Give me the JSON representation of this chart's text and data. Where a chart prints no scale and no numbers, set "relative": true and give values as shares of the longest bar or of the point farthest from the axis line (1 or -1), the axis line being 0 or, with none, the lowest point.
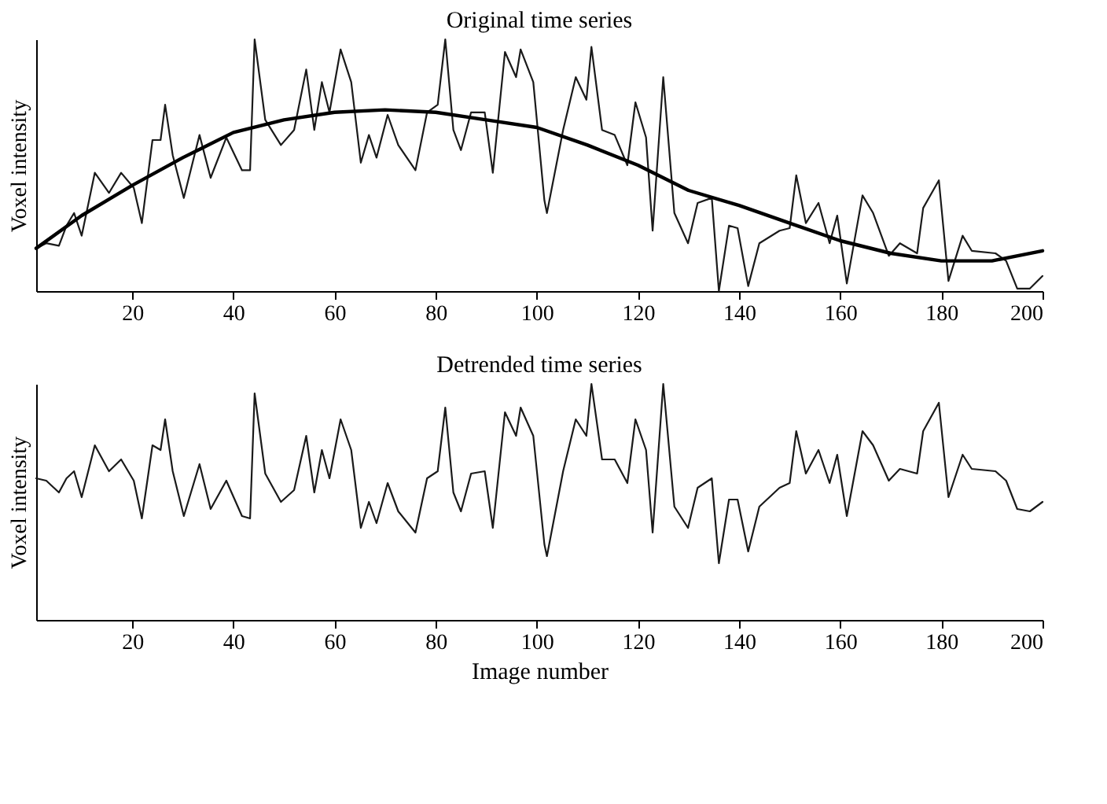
{
  "chart_data": [
    {
      "type": "line",
      "title": "Original time series",
      "ylabel": "Voxel intensity",
      "relative": true,
      "tick_labels": "x",
      "grid": false,
      "xlim": [
        1,
        200
      ],
      "xticks": [
        20,
        40,
        60,
        80,
        100,
        120,
        140,
        160,
        180,
        200
      ],
      "x": [
        1,
        3,
        5.5,
        7,
        8.5,
        10,
        12.6,
        15.4,
        17.8,
        20.3,
        21.9,
        24,
        25.6,
        26.5,
        28,
        30.2,
        33.3,
        35.5,
        38.6,
        41.7,
        43.3,
        44.2,
        46.3,
        49.4,
        52,
        54.4,
        56,
        57.5,
        59,
        61.2,
        63.3,
        65.2,
        66.8,
        68.3,
        70.5,
        72.6,
        76,
        78.3,
        80.4,
        81.9,
        83.5,
        85,
        87,
        89.7,
        91.3,
        93.7,
        95.9,
        96.8,
        99.3,
        101.5,
        102,
        105.2,
        107.7,
        109.8,
        110.8,
        112.9,
        115.4,
        117.9,
        119.5,
        121.6,
        122.9,
        125,
        127.2,
        129.9,
        131.8,
        134.6,
        136,
        138,
        139.7,
        141.8,
        144,
        148,
        150,
        151.3,
        153.2,
        155.7,
        157.9,
        159.4,
        161.3,
        164.4,
        166.5,
        169.6,
        171.8,
        175.2,
        176.4,
        179.5,
        181.4,
        184.2,
        186,
        190.7,
        192.8,
        195,
        197.5,
        200
      ],
      "series": [
        {
          "color": "#1a1a1a",
          "values": [
            0.17,
            0.19,
            0.18,
            0.26,
            0.31,
            0.22,
            0.47,
            0.39,
            0.47,
            0.41,
            0.27,
            0.6,
            0.6,
            0.74,
            0.54,
            0.37,
            0.62,
            0.45,
            0.61,
            0.48,
            0.48,
            1.0,
            0.68,
            0.58,
            0.64,
            0.88,
            0.64,
            0.83,
            0.71,
            0.96,
            0.83,
            0.51,
            0.62,
            0.53,
            0.7,
            0.58,
            0.48,
            0.71,
            0.74,
            1.0,
            0.64,
            0.56,
            0.71,
            0.71,
            0.47,
            0.95,
            0.85,
            0.96,
            0.83,
            0.36,
            0.31,
            0.64,
            0.85,
            0.76,
            0.97,
            0.64,
            0.62,
            0.5,
            0.75,
            0.61,
            0.24,
            0.85,
            0.31,
            0.19,
            0.35,
            0.37,
            0.0,
            0.26,
            0.25,
            0.02,
            0.19,
            0.24,
            0.25,
            0.46,
            0.27,
            0.35,
            0.19,
            0.3,
            0.03,
            0.38,
            0.31,
            0.14,
            0.19,
            0.15,
            0.33,
            0.44,
            0.04,
            0.22,
            0.16,
            0.15,
            0.12,
            0.01,
            0.01,
            0.06
          ]
        },
        {
          "type": "line",
          "color": "#000000",
          "x": [
            1,
            10,
            20,
            30,
            40,
            50,
            60,
            70,
            80,
            90,
            100,
            110,
            120,
            130,
            140,
            150,
            160,
            170,
            180,
            190,
            200
          ],
          "values": [
            0.17,
            0.3,
            0.42,
            0.53,
            0.63,
            0.68,
            0.71,
            0.72,
            0.71,
            0.68,
            0.65,
            0.58,
            0.5,
            0.4,
            0.34,
            0.27,
            0.2,
            0.15,
            0.12,
            0.12,
            0.16
          ]
        }
      ]
    },
    {
      "type": "line",
      "title": "Detrended time series",
      "xlabel": "Image number",
      "ylabel": "Voxel intensity",
      "relative": true,
      "tick_labels": "x",
      "grid": false,
      "xlim": [
        1,
        200
      ],
      "xticks": [
        20,
        40,
        60,
        80,
        100,
        120,
        140,
        160,
        180,
        200
      ],
      "x": [
        1,
        3,
        5.5,
        7,
        8.5,
        10,
        12.6,
        15.4,
        17.8,
        20.3,
        21.9,
        24,
        25.6,
        26.5,
        28,
        30.2,
        33.3,
        35.5,
        38.6,
        41.7,
        43.3,
        44.2,
        46.3,
        49.4,
        52,
        54.4,
        56,
        57.5,
        59,
        61.2,
        63.3,
        65.2,
        66.8,
        68.3,
        70.5,
        72.6,
        76,
        78.3,
        80.4,
        81.9,
        83.5,
        85,
        87,
        89.7,
        91.3,
        93.7,
        95.9,
        96.8,
        99.3,
        101.5,
        102,
        105.2,
        107.7,
        109.8,
        110.8,
        112.9,
        115.4,
        117.9,
        119.5,
        121.6,
        122.9,
        125,
        127.2,
        129.9,
        131.8,
        134.6,
        136,
        138,
        139.7,
        141.8,
        144,
        148,
        150,
        151.3,
        153.2,
        155.7,
        157.9,
        159.4,
        161.3,
        164.4,
        166.5,
        169.6,
        171.8,
        175.2,
        176.4,
        179.5,
        181.4,
        184.2,
        186,
        190.7,
        192.8,
        195,
        197.5,
        200
      ],
      "series": [
        {
          "color": "#1a1a1a",
          "values": [
            0.6,
            0.59,
            0.54,
            0.6,
            0.63,
            0.52,
            0.74,
            0.63,
            0.68,
            0.59,
            0.43,
            0.74,
            0.72,
            0.85,
            0.63,
            0.44,
            0.66,
            0.47,
            0.59,
            0.44,
            0.43,
            0.96,
            0.62,
            0.5,
            0.55,
            0.78,
            0.54,
            0.72,
            0.6,
            0.85,
            0.72,
            0.39,
            0.5,
            0.41,
            0.58,
            0.46,
            0.37,
            0.6,
            0.63,
            0.9,
            0.54,
            0.46,
            0.62,
            0.63,
            0.39,
            0.88,
            0.78,
            0.9,
            0.78,
            0.32,
            0.27,
            0.63,
            0.85,
            0.78,
            1.0,
            0.68,
            0.68,
            0.58,
            0.85,
            0.72,
            0.37,
            1.0,
            0.48,
            0.39,
            0.56,
            0.6,
            0.24,
            0.51,
            0.51,
            0.29,
            0.48,
            0.56,
            0.58,
            0.8,
            0.62,
            0.72,
            0.58,
            0.7,
            0.44,
            0.8,
            0.74,
            0.59,
            0.64,
            0.62,
            0.8,
            0.92,
            0.52,
            0.7,
            0.64,
            0.63,
            0.59,
            0.47,
            0.46,
            0.5
          ]
        }
      ]
    }
  ]
}
